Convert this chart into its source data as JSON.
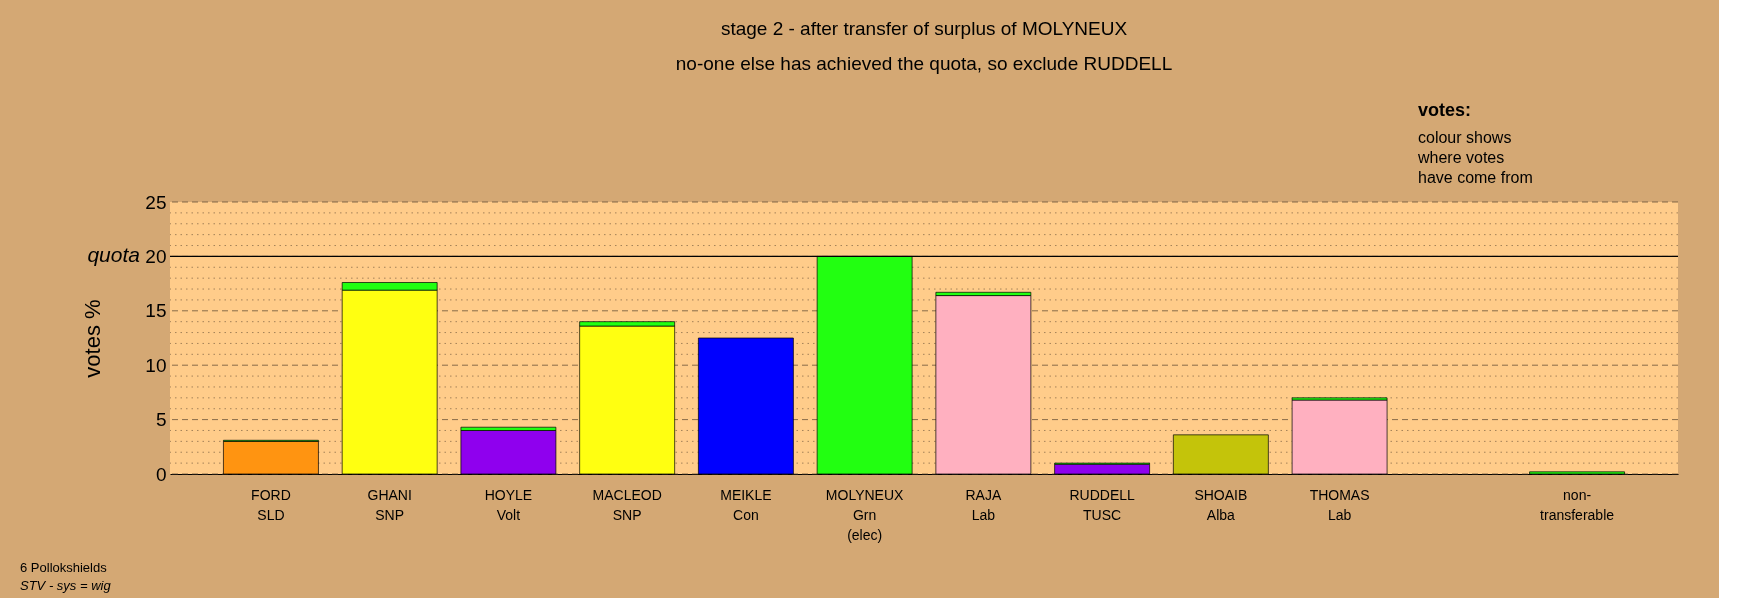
{
  "chart_data": {
    "type": "bar",
    "title": "stage 2 - after transfer of surplus of MOLYNEUX",
    "subtitle": "no-one else has achieved the quota, so exclude RUDDELL",
    "ylabel": "votes %",
    "categories": [
      "FORD\nSLD",
      "GHANI\nSNP",
      "HOYLE\nVolt",
      "MACLEOD\nSNP",
      "MEIKLE\nCon",
      "MOLYNEUX\nGrn\n(elec)",
      "RAJA\nLab",
      "RUDDELL\nTUSC",
      "SHOAIB\nAlba",
      "THOMAS\nLab",
      null,
      "non-\ntransferable"
    ],
    "stacked": true,
    "series": [
      {
        "colors": [
          "#ff9411",
          "#ffff11",
          "#8f00ee",
          "#ffff11",
          "#0000ff",
          "#22ff11",
          "#ffb0c0",
          "#8f00ee",
          "#c4c40a",
          "#ffb0c0",
          null,
          null
        ],
        "values": [
          3.0,
          16.9,
          4.0,
          13.6,
          12.5,
          20.0,
          16.4,
          0.9,
          3.6,
          6.8,
          null,
          null
        ]
      },
      {
        "color": "#22ff11",
        "values": [
          0.1,
          0.7,
          0.3,
          0.4,
          null,
          null,
          0.3,
          0.1,
          null,
          0.2,
          null,
          0.2
        ]
      }
    ],
    "ylim": [
      0,
      25
    ],
    "yticks": [
      0,
      {
        "value": 1,
        "label": null
      },
      {
        "value": 2,
        "label": null
      },
      {
        "value": 3,
        "label": null
      },
      {
        "value": 4,
        "label": null
      },
      5,
      {
        "value": 6,
        "label": null
      },
      {
        "value": 7,
        "label": null
      },
      {
        "value": 8,
        "label": null
      },
      {
        "value": 9,
        "label": null
      },
      10,
      {
        "value": 11,
        "label": null
      },
      {
        "value": 12,
        "label": null
      },
      {
        "value": 13,
        "label": null
      },
      {
        "value": 14,
        "label": null
      },
      15,
      {
        "value": 16,
        "label": null
      },
      {
        "value": 17,
        "label": null
      },
      {
        "value": 18,
        "label": null
      },
      {
        "value": 19,
        "label": null
      },
      20,
      {
        "value": 21,
        "label": null
      },
      {
        "value": 22,
        "label": null
      },
      {
        "value": 23,
        "label": null
      },
      {
        "value": 24,
        "label": null
      },
      25
    ],
    "grid": "y",
    "ref_lines": [
      {
        "axis": "y",
        "value": 20,
        "label": "quota",
        "color": "#000000"
      }
    ],
    "annotations": [
      "6 Pollokshields",
      "STV - sys = wig",
      "votes:",
      "colour shows\nwhere votes\nhave come from"
    ]
  }
}
